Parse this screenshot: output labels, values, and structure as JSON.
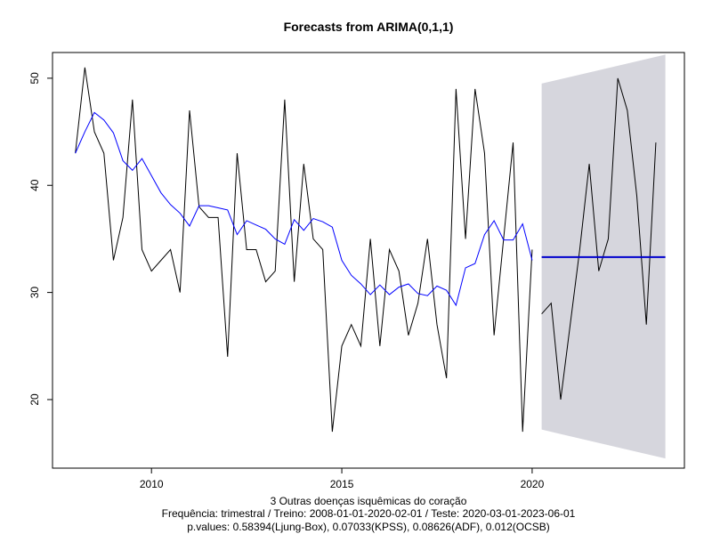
{
  "chart_data": {
    "type": "line",
    "title": "Forecasts from ARIMA(0,1,1)",
    "xlabel": "3 Outras doenças isquêmicas do coração",
    "caption_lines": [
      "Frequência: trimestral / Treino: 2008-01-01-2020-02-01 / Teste: 2020-03-01-2023-06-01",
      "p.values: 0.58394(Ljung-Box), 0.07033(KPSS), 0.08626(ADF), 0.012(OCSB)"
    ],
    "xlim": [
      2007.4,
      2024.0
    ],
    "ylim": [
      13.6,
      52.4
    ],
    "x_ticks": [
      2010,
      2015,
      2020
    ],
    "y_ticks": [
      20,
      30,
      40,
      50
    ],
    "grid": false,
    "colors": {
      "observed": "#000000",
      "fitted": "#0000ff",
      "forecast": "#0000cc",
      "interval": "#d6d6dd"
    },
    "series": [
      {
        "role": "observed",
        "x": [
          2008.0,
          2008.25,
          2008.5,
          2008.75,
          2009.0,
          2009.25,
          2009.5,
          2009.75,
          2010.0,
          2010.25,
          2010.5,
          2010.75,
          2011.0,
          2011.25,
          2011.5,
          2011.75,
          2012.0,
          2012.25,
          2012.5,
          2012.75,
          2013.0,
          2013.25,
          2013.5,
          2013.75,
          2014.0,
          2014.25,
          2014.5,
          2014.75,
          2015.0,
          2015.25,
          2015.5,
          2015.75,
          2016.0,
          2016.25,
          2016.5,
          2016.75,
          2017.0,
          2017.25,
          2017.5,
          2017.75,
          2018.0,
          2018.25,
          2018.5,
          2018.75,
          2019.0,
          2019.25,
          2019.5,
          2019.75,
          2020.0
        ],
        "values": [
          43,
          51,
          45,
          43,
          33,
          37,
          48,
          34,
          32,
          33,
          34,
          30,
          47,
          38,
          37,
          37,
          24,
          43,
          34,
          34,
          31,
          32,
          48,
          31,
          42,
          35,
          34,
          17,
          25,
          27,
          25,
          35,
          25,
          34,
          32,
          26,
          29,
          35,
          27,
          22,
          49,
          35,
          49,
          43,
          26,
          35,
          44,
          17,
          34
        ]
      },
      {
        "role": "fitted",
        "x": [
          2008.0,
          2008.25,
          2008.5,
          2008.75,
          2009.0,
          2009.25,
          2009.5,
          2009.75,
          2010.0,
          2010.25,
          2010.5,
          2010.75,
          2011.0,
          2011.25,
          2011.5,
          2011.75,
          2012.0,
          2012.25,
          2012.5,
          2012.75,
          2013.0,
          2013.25,
          2013.5,
          2013.75,
          2014.0,
          2014.25,
          2014.5,
          2014.75,
          2015.0,
          2015.25,
          2015.5,
          2015.75,
          2016.0,
          2016.25,
          2016.5,
          2016.75,
          2017.0,
          2017.25,
          2017.5,
          2017.75,
          2018.0,
          2018.25,
          2018.5,
          2018.75,
          2019.0,
          2019.25,
          2019.5,
          2019.75,
          2020.0
        ],
        "values": [
          43.0,
          45.0,
          46.8,
          46.1,
          44.9,
          42.3,
          41.4,
          42.5,
          40.9,
          39.3,
          38.2,
          37.4,
          36.2,
          38.1,
          38.1,
          37.9,
          37.7,
          35.4,
          36.7,
          36.3,
          35.9,
          35.0,
          34.5,
          36.8,
          35.8,
          36.9,
          36.6,
          36.1,
          33.0,
          31.6,
          30.8,
          29.8,
          30.7,
          29.8,
          30.5,
          30.8,
          29.9,
          29.7,
          30.6,
          30.2,
          28.8,
          32.3,
          32.7,
          35.4,
          36.7,
          34.9,
          34.9,
          36.4,
          33.0
        ]
      },
      {
        "role": "test",
        "x": [
          2020.25,
          2020.5,
          2020.75,
          2021.0,
          2021.25,
          2021.5,
          2021.75,
          2022.0,
          2022.25,
          2022.5,
          2022.75,
          2023.0,
          2023.25
        ],
        "values": [
          28,
          29,
          20,
          27,
          34,
          42,
          32,
          35,
          50,
          47,
          39,
          27,
          44
        ]
      }
    ],
    "forecast": {
      "x_start": 2020.25,
      "x_end": 2023.5,
      "mean": 33.3,
      "upper": [
        49.5,
        52.2
      ],
      "lower": [
        17.2,
        14.5
      ]
    }
  }
}
